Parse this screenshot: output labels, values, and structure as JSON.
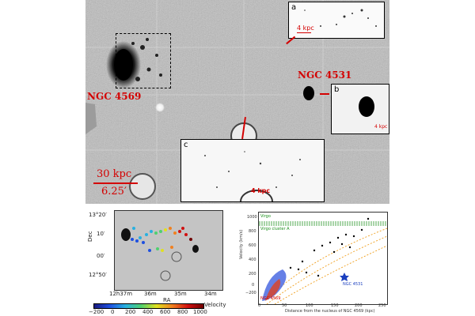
{
  "colors": {
    "annotation_red": "#d40000",
    "virgo_green": "#1a8f1a",
    "ngc4531_blue": "#1a3fbf",
    "band_orange": "#f0a020"
  },
  "top_panel": {
    "galaxy1": "NGC 4569",
    "galaxy2": "NGC 4531",
    "scale_kpc": "30 kpc",
    "scale_arcmin": "6.25′",
    "inset_a": {
      "label": "a",
      "scale": "4 kpc"
    },
    "inset_b": {
      "label": "b",
      "scale": "4 kpc"
    },
    "inset_c": {
      "label": "c",
      "scale": "4 kpc"
    }
  },
  "sky_map": {
    "dec_label": "Dec",
    "ra_label": "RA",
    "dec_ticks": [
      "13°20′",
      "10′",
      "00′",
      "12°50′"
    ],
    "ra_ticks": [
      "12h37m",
      "36m",
      "35m",
      "34m"
    ],
    "colorbar_title": "Velocity",
    "colorbar_ticks": [
      "−200",
      "0",
      "200",
      "400",
      "600",
      "800",
      "1000"
    ]
  },
  "velocity_plot": {
    "virgo_label": "Virgo",
    "virgo_a_label": "Virgo cluster A",
    "ngc4531_label": "NGC 4531",
    "ngc4569_label": "NGC 4569",
    "xlabel": "Distance from the nucleus of NGC 4569 (kpc)",
    "ylabel": "Velocity (km/s)",
    "y_ticks": [
      "1000",
      "800",
      "600",
      "400",
      "200",
      "0",
      "−200"
    ],
    "x_ticks": [
      "0",
      "50",
      "100",
      "150",
      "200",
      "250"
    ]
  }
}
